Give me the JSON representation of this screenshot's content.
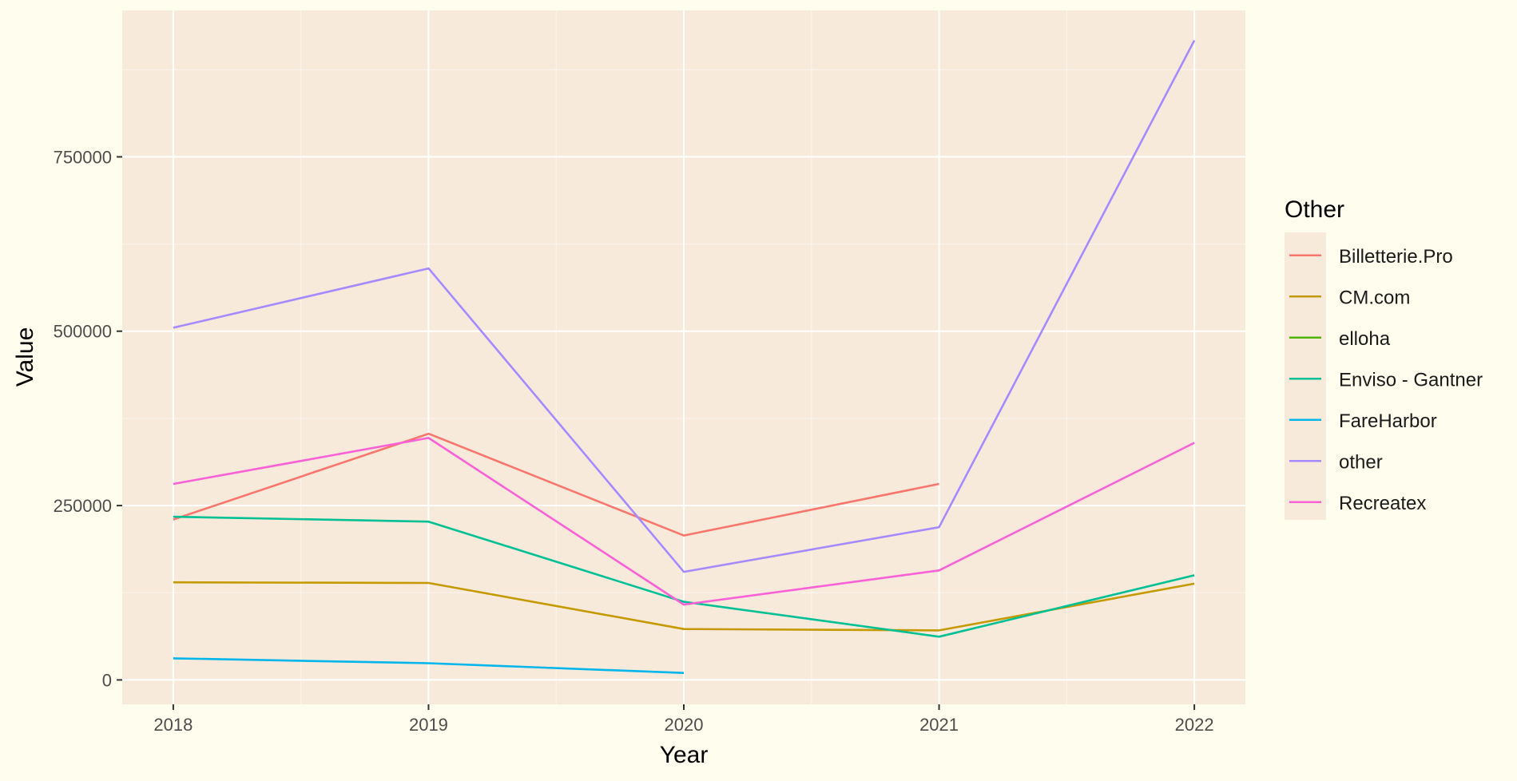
{
  "chart_data": {
    "type": "line",
    "xlabel": "Year",
    "ylabel": "Value",
    "x": [
      2018,
      2019,
      2020,
      2021,
      2022
    ],
    "xlim": [
      2017.8,
      2022.2
    ],
    "ylim": [
      -35000,
      960000
    ],
    "y_ticks": [
      0,
      250000,
      500000,
      750000
    ],
    "y_tick_labels": [
      "0",
      "250000",
      "500000",
      "750000"
    ],
    "x_tick_labels": [
      "2018",
      "2019",
      "2020",
      "2021",
      "2022"
    ],
    "legend_title": "Other",
    "legend_position": "right",
    "grid": true,
    "colors": {
      "panel_background": "#f8eada",
      "page_background": "#fffdee",
      "grid": "#ffffff"
    },
    "series": [
      {
        "name": "Billetterie.Pro",
        "color": "#f8766d",
        "values": [
          230000,
          353000,
          207000,
          281000,
          null
        ]
      },
      {
        "name": "CM.com",
        "color": "#c49a00",
        "values": [
          140000,
          139000,
          73000,
          71000,
          138000
        ]
      },
      {
        "name": "elloha",
        "color": "#53b400",
        "values": [
          null,
          null,
          null,
          null,
          null
        ]
      },
      {
        "name": "Enviso - Gantner",
        "color": "#00c094",
        "values": [
          234000,
          227000,
          112000,
          62000,
          150000
        ]
      },
      {
        "name": "FareHarbor",
        "color": "#00b6eb",
        "values": [
          31000,
          24000,
          10000,
          null,
          null
        ]
      },
      {
        "name": "other",
        "color": "#a58aff",
        "values": [
          505000,
          590000,
          155000,
          219000,
          917000
        ]
      },
      {
        "name": "Recreatex",
        "color": "#fb61d7",
        "values": [
          281000,
          347000,
          108000,
          157000,
          340000
        ]
      }
    ]
  }
}
